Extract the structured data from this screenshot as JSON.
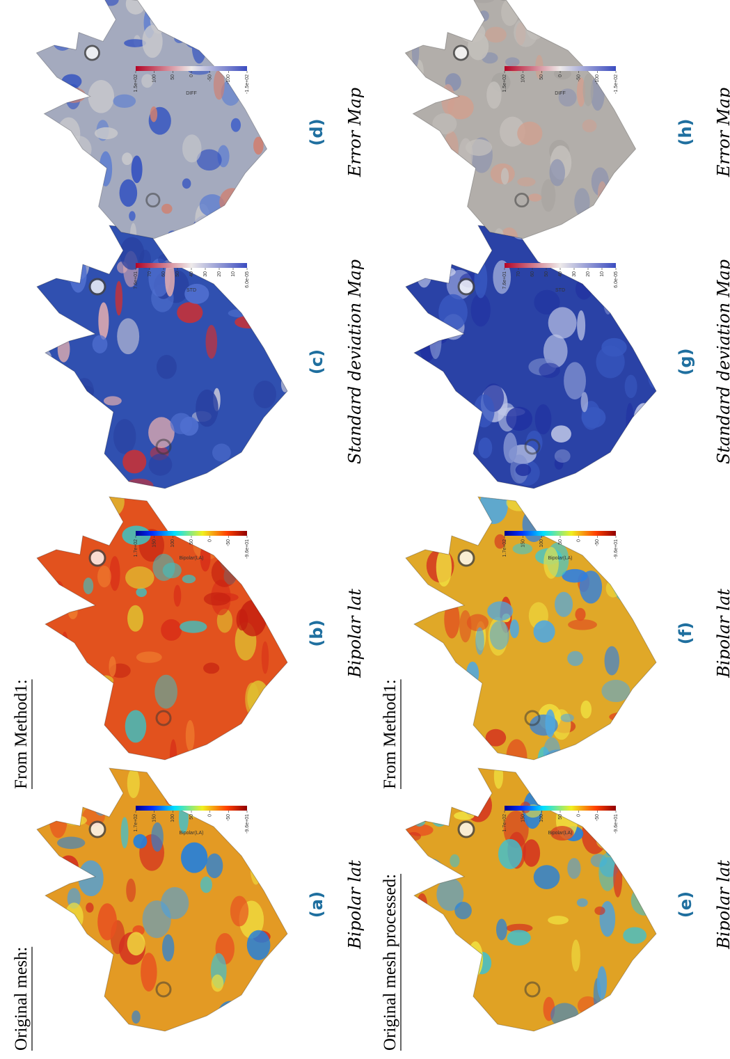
{
  "header_rows": [
    [
      "Original mesh:",
      "From Method1:"
    ],
    [
      "Original mesh processed:",
      "From Method1:"
    ]
  ],
  "panels": [
    {
      "label": "(a)",
      "caption": "Bipolar lat",
      "colorbar": {
        "title": "Bipolar(LA)",
        "ticks": [
          "1.7e+02",
          "150",
          "100",
          "50",
          "0",
          "-50",
          "-9.6e+01"
        ]
      }
    },
    {
      "label": "(b)",
      "caption": "Bipolar lat",
      "colorbar": {
        "title": "Bipolar(LA)",
        "ticks": [
          "1.7e+02",
          "150",
          "100",
          "50",
          "0",
          "-50",
          "-9.6e+01"
        ]
      }
    },
    {
      "label": "(c)",
      "caption": "Standard deviation Map",
      "colorbar": {
        "title": "STD",
        "ticks": [
          "7.6e+01",
          "70",
          "60",
          "50",
          "40",
          "30",
          "20",
          "10",
          "6.0e-05"
        ]
      }
    },
    {
      "label": "(d)",
      "caption": "Error Map",
      "colorbar": {
        "title": "DIFF",
        "ticks": [
          "1.5e+02",
          "100",
          "50",
          "0",
          "-50",
          "-100",
          "-1.5e+02"
        ]
      }
    },
    {
      "label": "(e)",
      "caption": "Bipolar lat",
      "colorbar": {
        "title": "Bipolar(LA)",
        "ticks": [
          "1.7e+02",
          "150",
          "100",
          "50",
          "0",
          "-50",
          "-9.6e+01"
        ]
      }
    },
    {
      "label": "(f)",
      "caption": "Bipolar lat",
      "colorbar": {
        "title": "Bipolar(LA)",
        "ticks": [
          "1.7e+02",
          "150",
          "100",
          "50",
          "0",
          "-50",
          "-9.6e+01"
        ]
      }
    },
    {
      "label": "(g)",
      "caption": "Standard deviation Map",
      "colorbar": {
        "title": "STD",
        "ticks": [
          "7.6e+01",
          "70",
          "60",
          "50",
          "40",
          "30",
          "20",
          "10",
          "6.0e-05"
        ]
      }
    },
    {
      "label": "(h)",
      "caption": "Error Map",
      "colorbar": {
        "title": "DIFF",
        "ticks": [
          "1.5e+02",
          "100",
          "50",
          "0",
          "-50",
          "-100",
          "-1.5e+02"
        ]
      }
    }
  ]
}
